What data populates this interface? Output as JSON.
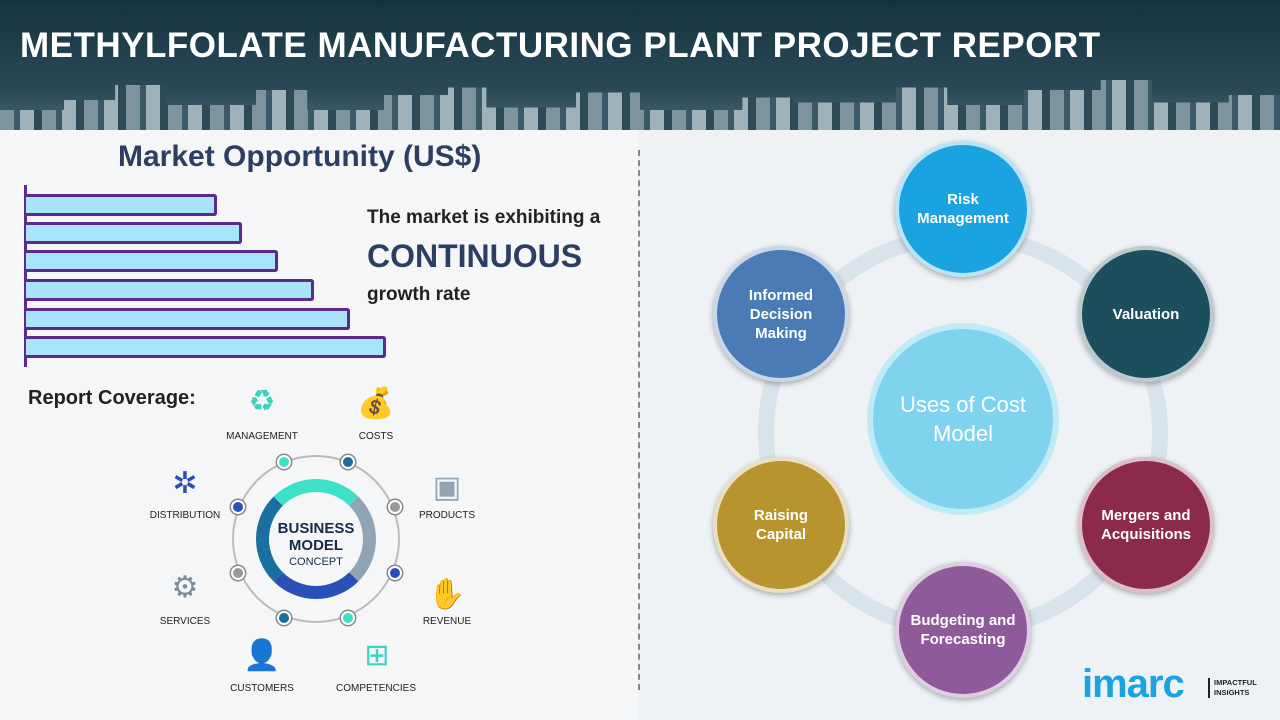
{
  "header": {
    "title": "METHYLFOLATE MANUFACTURING PLANT PROJECT REPORT"
  },
  "market": {
    "title": "Market Opportunity (US$)",
    "bar_levels": [
      0.53,
      0.6,
      0.7,
      0.8,
      0.9,
      1.0
    ],
    "line1": "The market is exhibiting a",
    "line2": "CONTINUOUS",
    "line3": "growth rate"
  },
  "coverage": {
    "label": "Report Coverage:",
    "center_line1": "BUSINESS",
    "center_line2": "MODEL",
    "center_line3": "CONCEPT",
    "items": [
      "MANAGEMENT",
      "COSTS",
      "PRODUCTS",
      "REVENUE",
      "COMPETENCIES",
      "CUSTOMERS",
      "SERVICES",
      "DISTRIBUTION"
    ]
  },
  "uses": {
    "center": "Uses of Cost Model",
    "nodes": [
      {
        "label": "Risk Management",
        "color": "#1aa3e0"
      },
      {
        "label": "Valuation",
        "color": "#1c4e5e"
      },
      {
        "label": "Mergers and Acquisitions",
        "color": "#8b2a4a"
      },
      {
        "label": "Budgeting and Forecasting",
        "color": "#8e5a9a"
      },
      {
        "label": "Raising Capital",
        "color": "#b8942e"
      },
      {
        "label": "Informed Decision Making",
        "color": "#4a7bb5"
      }
    ]
  },
  "logo": {
    "brand": "imarc",
    "tagline1": "IMPACTFUL",
    "tagline2": "INSIGHTS"
  }
}
